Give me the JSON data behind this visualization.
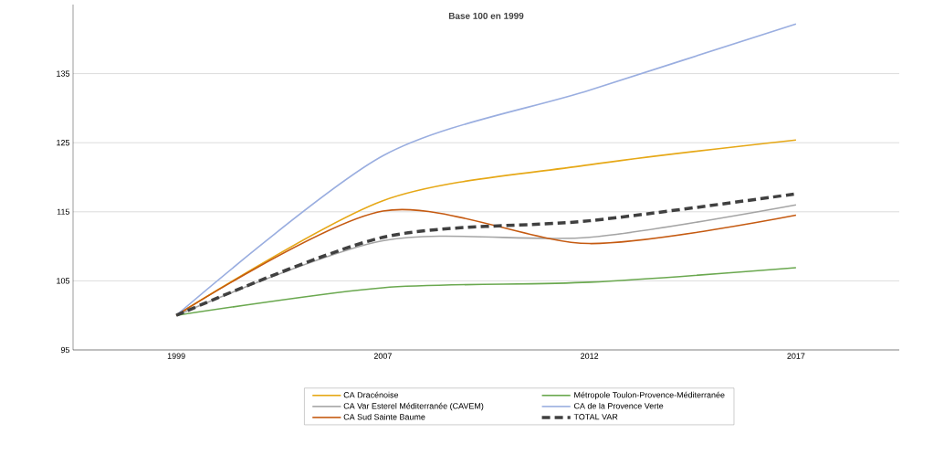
{
  "chart_data": {
    "type": "line",
    "title": "Base 100 en 1999",
    "categories": [
      "1999",
      "2007",
      "2012",
      "2017"
    ],
    "series": [
      {
        "name": "CA Dracénoise",
        "color": "#e6a817",
        "values": [
          100,
          116.6,
          121.8,
          125.4
        ]
      },
      {
        "name": "Métropole Toulon-Provence-Méditerranée",
        "color": "#6aa84f",
        "values": [
          100,
          104.0,
          104.8,
          106.9
        ]
      },
      {
        "name": "CA Var Esterel Méditerranée (CAVEM)",
        "color": "#a5a5a5",
        "values": [
          100,
          110.8,
          111.3,
          116.0
        ]
      },
      {
        "name": "CA de la Provence Verte",
        "color": "#9aaee0",
        "values": [
          100,
          123.1,
          132.6,
          142.2
        ]
      },
      {
        "name": "CA Sud Sainte Baume",
        "color": "#c55a11",
        "values": [
          100,
          115.1,
          110.4,
          114.5
        ]
      },
      {
        "name": "TOTAL VAR",
        "color": "#404040",
        "values": [
          100,
          111.3,
          113.7,
          117.6
        ],
        "line_style": "dashed"
      }
    ],
    "ylim": [
      95,
      145
    ],
    "yticks": [
      95,
      105,
      115,
      125,
      135
    ],
    "grid": "y",
    "legend": "bottom",
    "marker": "none",
    "line_style": "solid"
  }
}
